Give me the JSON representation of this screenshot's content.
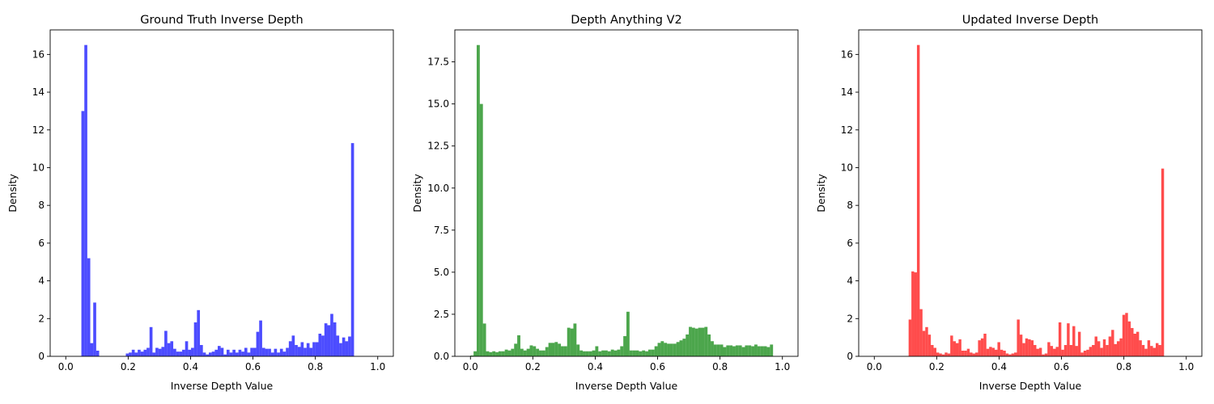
{
  "chart_data": [
    {
      "type": "bar",
      "title": "Ground Truth Inverse Depth",
      "xlabel": "Inverse Depth Value",
      "ylabel": "Density",
      "xlim": [
        -0.05,
        1.05
      ],
      "ylim": [
        0,
        17.3
      ],
      "xticks": [
        0.0,
        0.2,
        0.4,
        0.6,
        0.8,
        1.0
      ],
      "xtick_labels": [
        "0.0",
        "0.2",
        "0.4",
        "0.6",
        "0.8",
        "1.0"
      ],
      "yticks": [
        0,
        2,
        4,
        6,
        8,
        10,
        12,
        14,
        16
      ],
      "ytick_labels": [
        "0",
        "2",
        "4",
        "6",
        "8",
        "10",
        "12",
        "14",
        "16"
      ],
      "color": "#0000ff",
      "bin_start": 0.05,
      "bin_width": 0.0095,
      "values": [
        13.0,
        16.5,
        5.2,
        0.7,
        2.85,
        0.3,
        0,
        0,
        0,
        0,
        0,
        0,
        0,
        0,
        0,
        0.15,
        0.2,
        0.35,
        0.2,
        0.35,
        0.25,
        0.35,
        0.45,
        1.55,
        0.2,
        0.45,
        0.4,
        0.5,
        1.35,
        0.7,
        0.8,
        0.4,
        0.25,
        0.25,
        0.35,
        0.8,
        0.35,
        0.45,
        1.8,
        2.45,
        0.6,
        0.2,
        0.1,
        0.2,
        0.25,
        0.35,
        0.55,
        0.45,
        0.1,
        0.35,
        0.2,
        0.35,
        0.2,
        0.35,
        0.25,
        0.45,
        0.2,
        0.45,
        0.45,
        1.3,
        1.9,
        0.45,
        0.4,
        0.4,
        0.2,
        0.4,
        0.2,
        0.4,
        0.25,
        0.45,
        0.8,
        1.1,
        0.6,
        0.5,
        0.75,
        0.45,
        0.7,
        0.45,
        0.75,
        0.75,
        1.2,
        1.1,
        1.75,
        1.65,
        2.25,
        1.8,
        1.1,
        0.7,
        1.0,
        0.8,
        1.05,
        11.3
      ]
    },
    {
      "type": "bar",
      "title": "Depth Anything V2",
      "xlabel": "Inverse Depth Value",
      "ylabel": "Density",
      "xlim": [
        -0.05,
        1.05
      ],
      "ylim": [
        0,
        19.4
      ],
      "xticks": [
        0.0,
        0.2,
        0.4,
        0.6,
        0.8,
        1.0
      ],
      "xtick_labels": [
        "0.0",
        "0.2",
        "0.4",
        "0.6",
        "0.8",
        "1.0"
      ],
      "yticks": [
        0,
        2.5,
        5,
        7.5,
        10,
        12.5,
        15,
        17.5
      ],
      "ytick_labels": [
        "0.0",
        "2.5",
        "5.0",
        "7.5",
        "10.0",
        "12.5",
        "15.0",
        "17.5"
      ],
      "color": "#008000",
      "bin_start": 0.0,
      "bin_width": 0.01,
      "values": [
        0.05,
        0.3,
        18.5,
        15.0,
        1.95,
        0.3,
        0.25,
        0.3,
        0.25,
        0.3,
        0.3,
        0.4,
        0.35,
        0.45,
        0.75,
        1.25,
        0.45,
        0.35,
        0.45,
        0.65,
        0.6,
        0.45,
        0.35,
        0.35,
        0.55,
        0.8,
        0.8,
        0.85,
        0.75,
        0.6,
        0.6,
        1.7,
        1.65,
        1.95,
        0.7,
        0.35,
        0.3,
        0.3,
        0.3,
        0.35,
        0.6,
        0.3,
        0.35,
        0.35,
        0.3,
        0.4,
        0.35,
        0.4,
        0.6,
        1.2,
        2.65,
        0.35,
        0.35,
        0.35,
        0.3,
        0.35,
        0.3,
        0.4,
        0.4,
        0.6,
        0.8,
        0.9,
        0.8,
        0.75,
        0.75,
        0.75,
        0.85,
        0.95,
        1.05,
        1.3,
        1.75,
        1.7,
        1.65,
        1.7,
        1.7,
        1.75,
        1.3,
        0.9,
        0.7,
        0.7,
        0.7,
        0.55,
        0.65,
        0.65,
        0.6,
        0.65,
        0.65,
        0.55,
        0.65,
        0.65,
        0.6,
        0.7,
        0.6,
        0.6,
        0.6,
        0.55,
        0.7
      ]
    },
    {
      "type": "bar",
      "title": "Updated Inverse Depth",
      "xlabel": "Inverse Depth Value",
      "ylabel": "Density",
      "xlim": [
        -0.05,
        1.05
      ],
      "ylim": [
        0,
        17.3
      ],
      "xticks": [
        0.0,
        0.2,
        0.4,
        0.6,
        0.8,
        1.0
      ],
      "xtick_labels": [
        "0.0",
        "0.2",
        "0.4",
        "0.6",
        "0.8",
        "1.0"
      ],
      "yticks": [
        0,
        2,
        4,
        6,
        8,
        10,
        12,
        14,
        16
      ],
      "ytick_labels": [
        "0",
        "2",
        "4",
        "6",
        "8",
        "10",
        "12",
        "14",
        "16"
      ],
      "color": "#ff0000",
      "bin_start": 0.11,
      "bin_width": 0.0089,
      "values": [
        1.95,
        4.5,
        4.45,
        16.5,
        2.5,
        1.35,
        1.55,
        1.15,
        0.6,
        0.45,
        0.2,
        0.15,
        0.1,
        0.2,
        0.15,
        1.1,
        0.8,
        0.7,
        0.9,
        0.3,
        0.3,
        0.4,
        0.2,
        0.15,
        0.2,
        0.85,
        0.95,
        1.2,
        0.4,
        0.5,
        0.45,
        0.35,
        0.75,
        0.35,
        0.3,
        0.15,
        0.1,
        0.15,
        0.2,
        1.95,
        1.15,
        0.7,
        0.95,
        0.9,
        0.85,
        0.6,
        0.4,
        0.45,
        0.1,
        0.15,
        0.75,
        0.55,
        0.4,
        0.5,
        1.8,
        0.35,
        0.6,
        1.75,
        0.6,
        1.6,
        0.55,
        1.3,
        0.2,
        0.3,
        0.35,
        0.5,
        0.6,
        1.05,
        0.8,
        0.45,
        0.9,
        0.6,
        1.05,
        1.4,
        0.65,
        0.8,
        0.95,
        2.2,
        2.3,
        1.85,
        1.5,
        1.2,
        1.3,
        0.85,
        0.6,
        0.4,
        0.85,
        0.55,
        0.45,
        0.7,
        0.6,
        9.95
      ]
    }
  ]
}
